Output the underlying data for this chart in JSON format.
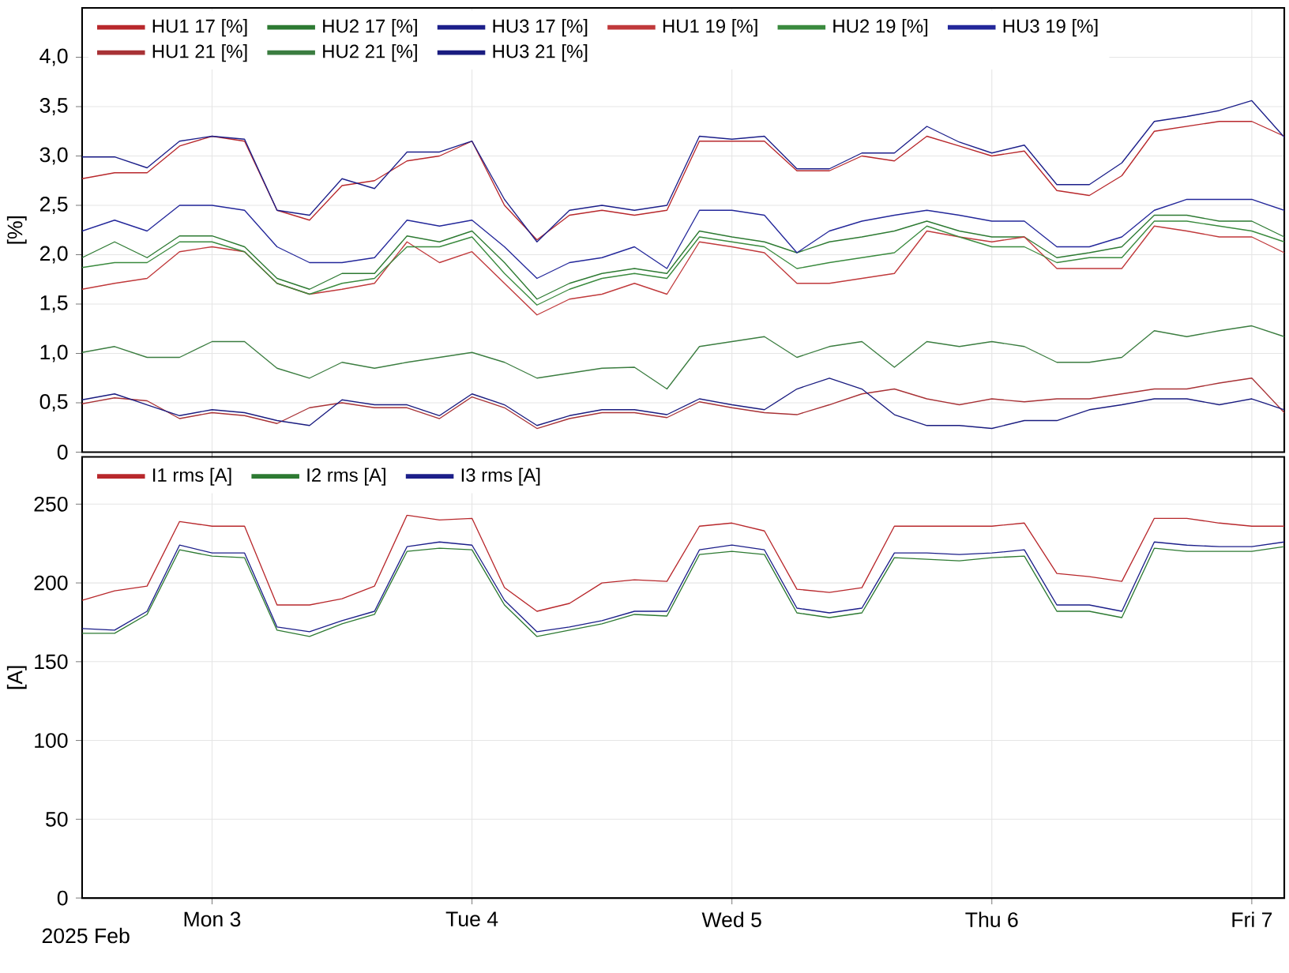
{
  "chart_data": [
    {
      "type": "line",
      "ylabel": "[%]",
      "legend": "top left",
      "grid": true,
      "tick_labels": "y",
      "xlim": [
        "2025-02-02T12:00",
        "2025-02-07T03:00"
      ],
      "xticks": [
        {
          "value": "2025-02-03",
          "label": null
        },
        {
          "value": "2025-02-04",
          "label": null
        },
        {
          "value": "2025-02-05",
          "label": null
        },
        {
          "value": "2025-02-06",
          "label": null
        },
        {
          "value": "2025-02-07",
          "label": null
        }
      ],
      "ylim": [
        0,
        4.5
      ],
      "yticks": [
        0,
        {
          "value": 0.5,
          "label": "0,5"
        },
        {
          "value": 1,
          "label": "1,0"
        },
        {
          "value": 1.5,
          "label": "1,5"
        },
        {
          "value": 2,
          "label": "2,0"
        },
        {
          "value": 2.5,
          "label": "2,5"
        },
        {
          "value": 3,
          "label": "3,0"
        },
        {
          "value": 3.5,
          "label": "3,5"
        },
        {
          "value": 4,
          "label": "4,0"
        }
      ],
      "x": [
        "2025-02-02T12:00",
        "2025-02-02T15:00",
        "2025-02-02T18:00",
        "2025-02-02T21:00",
        "2025-02-03T00:00",
        "2025-02-03T03:00",
        "2025-02-03T06:00",
        "2025-02-03T09:00",
        "2025-02-03T12:00",
        "2025-02-03T15:00",
        "2025-02-03T18:00",
        "2025-02-03T21:00",
        "2025-02-04T00:00",
        "2025-02-04T03:00",
        "2025-02-04T06:00",
        "2025-02-04T09:00",
        "2025-02-04T12:00",
        "2025-02-04T15:00",
        "2025-02-04T18:00",
        "2025-02-04T21:00",
        "2025-02-05T00:00",
        "2025-02-05T03:00",
        "2025-02-05T06:00",
        "2025-02-05T09:00",
        "2025-02-05T12:00",
        "2025-02-05T15:00",
        "2025-02-05T18:00",
        "2025-02-05T21:00",
        "2025-02-06T00:00",
        "2025-02-06T03:00",
        "2025-02-06T06:00",
        "2025-02-06T09:00",
        "2025-02-06T12:00",
        "2025-02-06T15:00",
        "2025-02-06T18:00",
        "2025-02-06T21:00",
        "2025-02-07T00:00",
        "2025-02-07T03:00"
      ],
      "series": [
        {
          "name": "HU1 17 [%]",
          "color": "#b8282c",
          "values": [
            2.77,
            2.83,
            2.83,
            3.1,
            3.2,
            3.15,
            2.45,
            2.35,
            2.7,
            2.75,
            2.95,
            3.0,
            3.15,
            2.5,
            2.15,
            2.4,
            2.45,
            2.4,
            2.45,
            3.15,
            3.15,
            3.15,
            2.85,
            2.85,
            3.0,
            2.95,
            3.2,
            3.1,
            3.0,
            3.05,
            2.65,
            2.6,
            2.8,
            3.25,
            3.3,
            3.35,
            3.35,
            3.2
          ]
        },
        {
          "name": "HU2 17 [%]",
          "color": "#2d7a32",
          "values": [
            1.97,
            2.13,
            1.97,
            2.19,
            2.19,
            2.08,
            1.76,
            1.65,
            1.81,
            1.81,
            2.19,
            2.13,
            2.24,
            1.92,
            1.55,
            1.71,
            1.81,
            1.86,
            1.81,
            2.24,
            2.18,
            2.13,
            2.02,
            2.13,
            2.18,
            2.24,
            2.34,
            2.24,
            2.18,
            2.18,
            1.97,
            2.02,
            2.08,
            2.4,
            2.4,
            2.34,
            2.34,
            2.18
          ]
        },
        {
          "name": "HU3 17 [%]",
          "color": "#1c1f8a",
          "values": [
            2.99,
            2.99,
            2.88,
            3.15,
            3.2,
            3.17,
            2.45,
            2.4,
            2.77,
            2.67,
            3.04,
            3.04,
            3.15,
            2.56,
            2.13,
            2.45,
            2.5,
            2.45,
            2.5,
            3.2,
            3.17,
            3.2,
            2.87,
            2.87,
            3.03,
            3.03,
            3.3,
            3.14,
            3.03,
            3.11,
            2.71,
            2.71,
            2.93,
            3.35,
            3.4,
            3.46,
            3.56,
            3.19
          ]
        },
        {
          "name": "HU1 19 [%]",
          "color": "#c0393b",
          "values": [
            1.65,
            1.71,
            1.76,
            2.03,
            2.08,
            2.03,
            1.71,
            1.6,
            1.65,
            1.71,
            2.13,
            1.92,
            2.03,
            1.71,
            1.39,
            1.55,
            1.6,
            1.71,
            1.6,
            2.13,
            2.08,
            2.02,
            1.71,
            1.71,
            1.76,
            1.81,
            2.24,
            2.18,
            2.13,
            2.18,
            1.86,
            1.86,
            1.86,
            2.29,
            2.24,
            2.18,
            2.18,
            2.02
          ]
        },
        {
          "name": "HU2 19 [%]",
          "color": "#3a8a3e",
          "values": [
            1.87,
            1.92,
            1.92,
            2.13,
            2.13,
            2.03,
            1.71,
            1.6,
            1.71,
            1.76,
            2.08,
            2.08,
            2.18,
            1.81,
            1.49,
            1.65,
            1.76,
            1.81,
            1.76,
            2.18,
            2.13,
            2.08,
            1.86,
            1.92,
            1.97,
            2.02,
            2.29,
            2.18,
            2.08,
            2.08,
            1.92,
            1.97,
            1.97,
            2.34,
            2.34,
            2.29,
            2.24,
            2.13
          ]
        },
        {
          "name": "HU3 19 [%]",
          "color": "#23279a",
          "values": [
            2.24,
            2.35,
            2.24,
            2.5,
            2.5,
            2.45,
            2.08,
            1.92,
            1.92,
            1.97,
            2.35,
            2.29,
            2.35,
            2.08,
            1.76,
            1.92,
            1.97,
            2.08,
            1.86,
            2.45,
            2.45,
            2.4,
            2.02,
            2.24,
            2.34,
            2.4,
            2.45,
            2.4,
            2.34,
            2.34,
            2.08,
            2.08,
            2.18,
            2.45,
            2.56,
            2.56,
            2.56,
            2.45
          ]
        },
        {
          "name": "HU1 21 [%]",
          "color": "#a83236",
          "values": [
            0.49,
            0.55,
            0.52,
            0.34,
            0.4,
            0.37,
            0.29,
            0.45,
            0.5,
            0.45,
            0.45,
            0.34,
            0.56,
            0.45,
            0.24,
            0.34,
            0.4,
            0.4,
            0.35,
            0.51,
            0.45,
            0.4,
            0.38,
            0.48,
            0.59,
            0.64,
            0.54,
            0.48,
            0.54,
            0.51,
            0.54,
            0.54,
            0.59,
            0.64,
            0.64,
            0.7,
            0.75,
            0.4
          ]
        },
        {
          "name": "HU2 21 [%]",
          "color": "#3b7d40",
          "values": [
            1.01,
            1.07,
            0.96,
            0.96,
            1.12,
            1.12,
            0.85,
            0.75,
            0.91,
            0.85,
            0.91,
            0.96,
            1.01,
            0.91,
            0.75,
            0.8,
            0.85,
            0.86,
            0.64,
            1.07,
            1.12,
            1.17,
            0.96,
            1.07,
            1.12,
            0.86,
            1.12,
            1.07,
            1.12,
            1.07,
            0.91,
            0.91,
            0.96,
            1.23,
            1.17,
            1.23,
            1.28,
            1.17
          ]
        },
        {
          "name": "HU3 21 [%]",
          "color": "#1a1c80",
          "values": [
            0.53,
            0.59,
            0.48,
            0.37,
            0.43,
            0.4,
            0.32,
            0.27,
            0.53,
            0.48,
            0.48,
            0.37,
            0.59,
            0.48,
            0.27,
            0.37,
            0.43,
            0.43,
            0.38,
            0.54,
            0.48,
            0.43,
            0.64,
            0.75,
            0.64,
            0.38,
            0.27,
            0.27,
            0.24,
            0.32,
            0.32,
            0.43,
            0.48,
            0.54,
            0.54,
            0.48,
            0.54,
            0.43
          ]
        }
      ]
    },
    {
      "type": "line",
      "ylabel": "[A]",
      "xlabel": "2025 Feb",
      "legend": "top left",
      "grid": true,
      "xlim": [
        "2025-02-02T12:00",
        "2025-02-07T03:00"
      ],
      "xticks": [
        {
          "value": "2025-02-03",
          "label": "Mon 3"
        },
        {
          "value": "2025-02-04",
          "label": "Tue 4"
        },
        {
          "value": "2025-02-05",
          "label": "Wed 5"
        },
        {
          "value": "2025-02-06",
          "label": "Thu 6"
        },
        {
          "value": "2025-02-07",
          "label": "Fri 7"
        }
      ],
      "ylim": [
        0,
        280
      ],
      "yticks": [
        0,
        50,
        100,
        150,
        200,
        250
      ],
      "x": [
        "2025-02-02T12:00",
        "2025-02-02T15:00",
        "2025-02-02T18:00",
        "2025-02-02T21:00",
        "2025-02-03T00:00",
        "2025-02-03T03:00",
        "2025-02-03T06:00",
        "2025-02-03T09:00",
        "2025-02-03T12:00",
        "2025-02-03T15:00",
        "2025-02-03T18:00",
        "2025-02-03T21:00",
        "2025-02-04T00:00",
        "2025-02-04T03:00",
        "2025-02-04T06:00",
        "2025-02-04T09:00",
        "2025-02-04T12:00",
        "2025-02-04T15:00",
        "2025-02-04T18:00",
        "2025-02-04T21:00",
        "2025-02-05T00:00",
        "2025-02-05T03:00",
        "2025-02-05T06:00",
        "2025-02-05T09:00",
        "2025-02-05T12:00",
        "2025-02-05T15:00",
        "2025-02-05T18:00",
        "2025-02-05T21:00",
        "2025-02-06T00:00",
        "2025-02-06T03:00",
        "2025-02-06T06:00",
        "2025-02-06T09:00",
        "2025-02-06T12:00",
        "2025-02-06T15:00",
        "2025-02-06T18:00",
        "2025-02-06T21:00",
        "2025-02-07T00:00",
        "2025-02-07T03:00"
      ],
      "series": [
        {
          "name": "I1 rms [A]",
          "color": "#b8282c",
          "values": [
            189,
            195,
            198,
            239,
            236,
            236,
            186,
            186,
            190,
            198,
            243,
            240,
            241,
            197,
            182,
            187,
            200,
            202,
            201,
            236,
            238,
            233,
            196,
            194,
            197,
            236,
            236,
            236,
            236,
            238,
            206,
            204,
            201,
            241,
            241,
            238,
            236,
            236
          ]
        },
        {
          "name": "I2 rms [A]",
          "color": "#2d7a32",
          "values": [
            168,
            168,
            180,
            221,
            217,
            216,
            170,
            166,
            174,
            180,
            220,
            222,
            221,
            186,
            166,
            170,
            174,
            180,
            179,
            218,
            220,
            218,
            181,
            178,
            181,
            216,
            215,
            214,
            216,
            217,
            182,
            182,
            178,
            222,
            220,
            220,
            220,
            223
          ]
        },
        {
          "name": "I3 rms [A]",
          "color": "#1c1f8a",
          "values": [
            171,
            170,
            182,
            224,
            219,
            219,
            172,
            169,
            176,
            182,
            223,
            226,
            224,
            189,
            169,
            172,
            176,
            182,
            182,
            221,
            224,
            221,
            184,
            181,
            184,
            219,
            219,
            218,
            219,
            221,
            186,
            186,
            182,
            226,
            224,
            223,
            223,
            226
          ]
        }
      ]
    }
  ]
}
